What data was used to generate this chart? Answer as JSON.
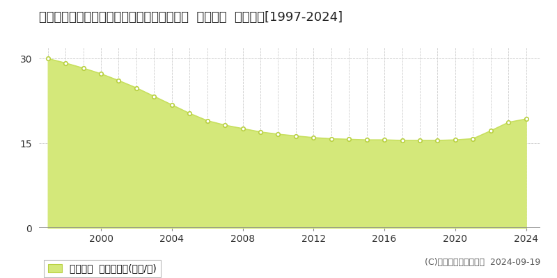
{
  "title": "北海道札幌市厚別区もみじ台北１丁目６番８  基準地価  地価推移[1997-2024]",
  "years": [
    1997,
    1998,
    1999,
    2000,
    2001,
    2002,
    2003,
    2004,
    2005,
    2006,
    2007,
    2008,
    2009,
    2010,
    2011,
    2012,
    2013,
    2014,
    2015,
    2016,
    2017,
    2018,
    2019,
    2020,
    2021,
    2022,
    2023,
    2024
  ],
  "values": [
    30.0,
    29.2,
    28.3,
    27.3,
    26.1,
    24.8,
    23.3,
    21.8,
    20.3,
    19.0,
    18.2,
    17.6,
    17.0,
    16.6,
    16.3,
    16.0,
    15.8,
    15.7,
    15.6,
    15.6,
    15.5,
    15.5,
    15.5,
    15.6,
    15.8,
    17.2,
    18.7,
    19.3
  ],
  "line_color": "#c8e060",
  "fill_color": "#d4e87a",
  "fill_alpha": 1.0,
  "marker_color": "#ffffff",
  "marker_edge_color": "#b8d040",
  "bg_color": "#ffffff",
  "plot_bg_color": "#ffffff",
  "grid_color": "#cccccc",
  "yticks": [
    0,
    15,
    30
  ],
  "ylim": [
    0,
    32
  ],
  "xlim": [
    1996.5,
    2024.8
  ],
  "xticks": [
    2000,
    2004,
    2008,
    2012,
    2016,
    2020,
    2024
  ],
  "legend_label": "基準地価  平均坪単価(万円/坪)",
  "copyright_text": "(C)土地価格ドットコム  2024-09-19",
  "title_fontsize": 13,
  "tick_fontsize": 10,
  "legend_fontsize": 10,
  "copyright_fontsize": 9
}
